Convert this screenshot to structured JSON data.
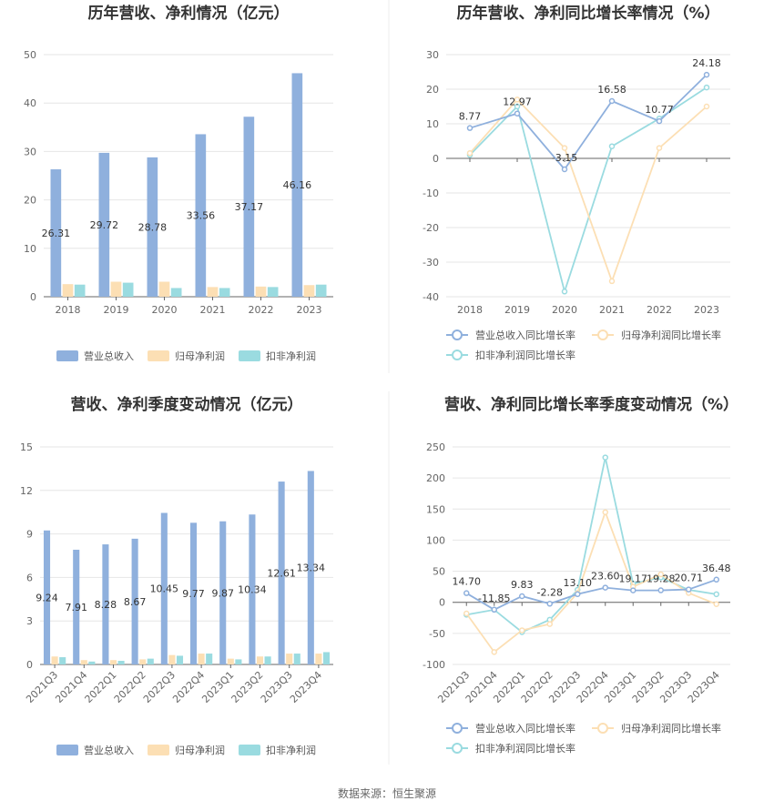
{
  "source_text": "数据来源：恒生聚源",
  "colors": {
    "rev": "#8fb0dd",
    "np": "#fcdfb4",
    "dnp": "#9adbe0",
    "grid": "#e6e6e6",
    "axis": "#666666"
  },
  "chart_data": [
    {
      "id": "annual-bars",
      "type": "bar",
      "title": "历年营收、净利情况（亿元）",
      "categories": [
        "2018",
        "2019",
        "2020",
        "2021",
        "2022",
        "2023"
      ],
      "ylim": [
        0,
        50
      ],
      "yticks": [
        0,
        10,
        20,
        30,
        40,
        50
      ],
      "series": [
        {
          "name": "营业总收入",
          "color_key": "rev",
          "values": [
            26.31,
            29.72,
            28.78,
            33.56,
            37.17,
            46.16
          ],
          "labels": [
            "26.31",
            "29.72",
            "28.78",
            "33.56",
            "37.17",
            "46.16"
          ]
        },
        {
          "name": "归母净利润",
          "color_key": "np",
          "values": [
            2.6,
            3.1,
            3.1,
            2.0,
            2.1,
            2.4
          ]
        },
        {
          "name": "扣非净利润",
          "color_key": "dnp",
          "values": [
            2.5,
            2.9,
            1.8,
            1.8,
            2.0,
            2.5
          ]
        }
      ]
    },
    {
      "id": "annual-lines",
      "type": "line",
      "title": "历年营收、净利同比增长率情况（%）",
      "categories": [
        "2018",
        "2019",
        "2020",
        "2021",
        "2022",
        "2023"
      ],
      "ylim": [
        -40,
        30
      ],
      "yticks": [
        -40,
        -30,
        -20,
        -10,
        0,
        10,
        20,
        30
      ],
      "series": [
        {
          "name": "营业总收入同比增长率",
          "color_key": "rev",
          "values": [
            8.77,
            12.97,
            -3.15,
            16.58,
            10.77,
            24.18
          ],
          "labels": [
            "8.77",
            "12.97",
            "-3.15",
            "16.58",
            "10.77",
            "24.18"
          ]
        },
        {
          "name": "归母净利润同比增长率",
          "color_key": "np",
          "values": [
            1.5,
            17.0,
            3.0,
            -35.5,
            3.0,
            15.0
          ]
        },
        {
          "name": "扣非净利润同比增长率",
          "color_key": "dnp",
          "values": [
            1.0,
            15.0,
            -38.5,
            3.5,
            11.5,
            20.5
          ]
        }
      ]
    },
    {
      "id": "quarterly-bars",
      "type": "bar",
      "title": "营收、净利季度变动情况（亿元）",
      "categories": [
        "2021Q3",
        "2021Q4",
        "2022Q1",
        "2022Q2",
        "2022Q3",
        "2022Q4",
        "2023Q1",
        "2023Q2",
        "2023Q3",
        "2023Q4"
      ],
      "ylim": [
        0,
        15
      ],
      "yticks": [
        0,
        3,
        6,
        9,
        12,
        15
      ],
      "series": [
        {
          "name": "营业总收入",
          "color_key": "rev",
          "values": [
            9.24,
            7.91,
            8.28,
            8.67,
            10.45,
            9.77,
            9.87,
            10.34,
            12.61,
            13.34
          ],
          "labels": [
            "9.24",
            "7.91",
            "8.28",
            "8.67",
            "10.45",
            "9.77",
            "9.87",
            "10.34",
            "12.61",
            "13.34"
          ]
        },
        {
          "name": "归母净利润",
          "color_key": "np",
          "values": [
            0.55,
            0.3,
            0.3,
            0.35,
            0.65,
            0.75,
            0.4,
            0.55,
            0.75,
            0.75
          ]
        },
        {
          "name": "扣非净利润",
          "color_key": "dnp",
          "values": [
            0.5,
            0.2,
            0.25,
            0.4,
            0.6,
            0.75,
            0.35,
            0.55,
            0.75,
            0.85
          ]
        }
      ]
    },
    {
      "id": "quarterly-lines",
      "type": "line",
      "title": "营收、净利同比增长率季度变动情况（%）",
      "categories": [
        "2021Q3",
        "2021Q4",
        "2022Q1",
        "2022Q2",
        "2022Q3",
        "2022Q4",
        "2023Q1",
        "2023Q2",
        "2023Q3",
        "2023Q4"
      ],
      "ylim": [
        -100,
        250
      ],
      "yticks": [
        -100,
        -50,
        0,
        50,
        100,
        150,
        200,
        250
      ],
      "series": [
        {
          "name": "营业总收入同比增长率",
          "color_key": "rev",
          "values": [
            14.7,
            -11.85,
            9.83,
            -2.28,
            13.1,
            23.6,
            19.17,
            19.28,
            20.71,
            36.48
          ],
          "labels": [
            "14.70",
            "-11.85",
            "9.83",
            "-2.28",
            "13.10",
            "23.60",
            "19.17",
            "19.28",
            "20.71",
            "36.48"
          ]
        },
        {
          "name": "归母净利润同比增长率",
          "color_key": "np",
          "values": [
            -18,
            -80,
            -45,
            -35,
            15,
            145,
            25,
            45,
            15,
            -3
          ]
        },
        {
          "name": "扣非净利润同比增长率",
          "color_key": "dnp",
          "values": [
            -20,
            -12,
            -48,
            -28,
            20,
            233,
            30,
            40,
            20,
            13
          ]
        }
      ]
    }
  ]
}
